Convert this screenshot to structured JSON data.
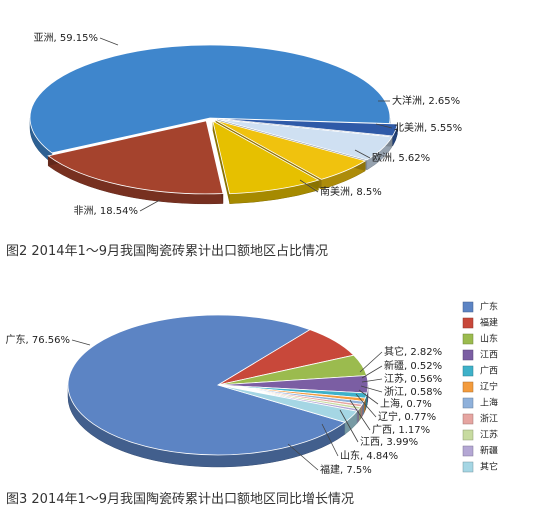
{
  "chart_data": [
    {
      "type": "pie",
      "title": "",
      "caption": "图2 2014年1～9月我国陶瓷砖累计出口额地区占比情况",
      "categories": [
        "亚洲",
        "大洋洲",
        "北美洲",
        "欧洲",
        "南美洲",
        "非洲"
      ],
      "values": [
        59.15,
        2.65,
        5.55,
        5.62,
        8.5,
        18.54
      ],
      "labels": [
        "亚洲, 59.15%",
        "大洋洲, 2.65%",
        "北美洲, 5.55%",
        "欧洲, 5.62%",
        "南美洲, 8.5%",
        "非洲, 18.54%"
      ],
      "colors": [
        "#3f86cc",
        "#2f5aa8",
        "#cfe0f2",
        "#f0c20e",
        "#e6c000",
        "#a5432d"
      ],
      "exploded": [
        "大洋洲",
        "北美洲",
        "欧洲",
        "南美洲",
        "非洲"
      ],
      "three_d": true,
      "legend": "none"
    },
    {
      "type": "pie",
      "title": "",
      "caption": "图3 2014年1～9月我国陶瓷砖累计出口额地区同比增长情况",
      "categories": [
        "广东",
        "福建",
        "山东",
        "江西",
        "广西",
        "辽宁",
        "上海",
        "浙江",
        "江苏",
        "新疆",
        "其它"
      ],
      "values": [
        76.56,
        7.5,
        4.84,
        3.99,
        1.17,
        0.77,
        0.7,
        0.58,
        0.56,
        0.52,
        2.82
      ],
      "labels": [
        "广东, 76.56%",
        "福建, 7.5%",
        "山东, 4.84%",
        "江西, 3.99%",
        "广西, 1.17%",
        "辽宁, 0.77%",
        "上海, 0.7%",
        "浙江, 0.58%",
        "江苏, 0.56%",
        "新疆, 0.52%",
        "其它, 2.82%"
      ],
      "colors": [
        "#5c84c4",
        "#c8483a",
        "#9bbb4e",
        "#7b5ea3",
        "#3eb1c9",
        "#f39b3c",
        "#8fb1db",
        "#e6a5a1",
        "#c7dba0",
        "#b4a7d4",
        "#a5d6e4"
      ],
      "three_d": true,
      "legend": "right"
    }
  ]
}
